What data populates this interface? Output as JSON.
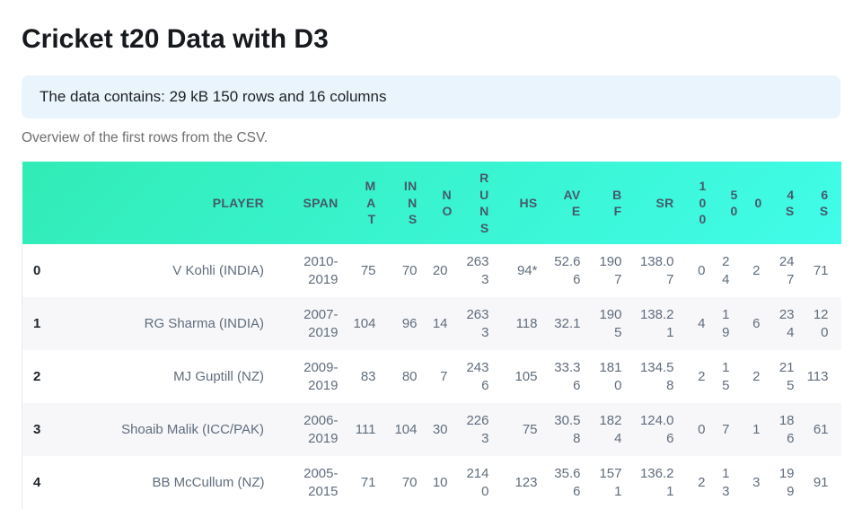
{
  "page": {
    "title": "Cricket t20 Data with D3",
    "info_banner": "The data contains: 29 kB 150 rows and 16 columns",
    "overview_caption": "Overview of the first rows from the CSV."
  },
  "colors": {
    "header_gradient_start": "#31ecb6",
    "header_gradient_end": "#41fce9",
    "header_text": "#47596a",
    "cell_text": "#606d7d",
    "row_stripe": "#f7f7f9",
    "info_banner_bg": "#e9f4fd"
  },
  "table": {
    "columns": [
      {
        "id": "index",
        "label": ""
      },
      {
        "id": "player",
        "label": "PLAYER"
      },
      {
        "id": "span",
        "label": "SPAN"
      },
      {
        "id": "mat",
        "label": "MAT"
      },
      {
        "id": "inns",
        "label": "INNS"
      },
      {
        "id": "no",
        "label": "NO"
      },
      {
        "id": "runs",
        "label": "RUNS"
      },
      {
        "id": "hs",
        "label": "HS"
      },
      {
        "id": "ave",
        "label": "AVE"
      },
      {
        "id": "bf",
        "label": "BF"
      },
      {
        "id": "sr",
        "label": "SR"
      },
      {
        "id": "100",
        "label": "100"
      },
      {
        "id": "50",
        "label": "50"
      },
      {
        "id": "0",
        "label": "0"
      },
      {
        "id": "4s",
        "label": "4S"
      },
      {
        "id": "6s",
        "label": "6S"
      }
    ],
    "rows": [
      [
        "0",
        "V Kohli (INDIA)",
        "2010-2019",
        "75",
        "70",
        "20",
        "2633",
        "94*",
        "52.66",
        "1907",
        "138.07",
        "0",
        "24",
        "2",
        "247",
        "71"
      ],
      [
        "1",
        "RG Sharma (INDIA)",
        "2007-2019",
        "104",
        "96",
        "14",
        "2633",
        "118",
        "32.1",
        "1905",
        "138.21",
        "4",
        "19",
        "6",
        "234",
        "120"
      ],
      [
        "2",
        "MJ Guptill (NZ)",
        "2009-2019",
        "83",
        "80",
        "7",
        "2436",
        "105",
        "33.36",
        "1810",
        "134.58",
        "2",
        "15",
        "2",
        "215",
        "113"
      ],
      [
        "3",
        "Shoaib Malik (ICC/PAK)",
        "2006-2019",
        "111",
        "104",
        "30",
        "2263",
        "75",
        "30.58",
        "1824",
        "124.06",
        "0",
        "7",
        "1",
        "186",
        "61"
      ],
      [
        "4",
        "BB McCullum (NZ)",
        "2005-2015",
        "71",
        "70",
        "10",
        "2140",
        "123",
        "35.66",
        "1571",
        "136.21",
        "2",
        "13",
        "3",
        "199",
        "91"
      ]
    ]
  }
}
